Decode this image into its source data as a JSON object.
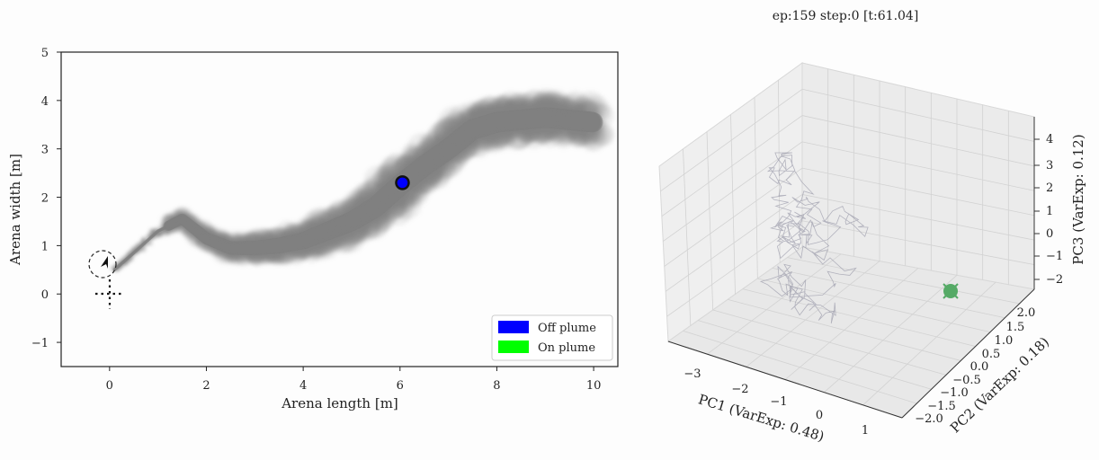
{
  "title": "ep:159 step:0 [t:61.04]",
  "chart_data": [
    {
      "type": "scatter",
      "xlabel": "Arena length [m]",
      "ylabel": "Arena width [m]",
      "xlim": [
        -1.0,
        10.5
      ],
      "ylim": [
        -1.5,
        5.0
      ],
      "xticks": [
        0,
        2,
        4,
        6,
        8,
        10
      ],
      "yticks": [
        -1,
        0,
        1,
        2,
        3,
        4,
        5
      ],
      "tick_labels_x": [
        "0",
        "2",
        "4",
        "6",
        "8",
        "10"
      ],
      "tick_labels_y": [
        "−1",
        "0",
        "1",
        "2",
        "3",
        "4",
        "5"
      ],
      "plume_centerline": [
        {
          "x": 0.1,
          "y": 0.5
        },
        {
          "x": 0.5,
          "y": 0.85
        },
        {
          "x": 1.0,
          "y": 1.3
        },
        {
          "x": 1.5,
          "y": 1.55
        },
        {
          "x": 2.0,
          "y": 1.15
        },
        {
          "x": 2.5,
          "y": 0.95
        },
        {
          "x": 3.0,
          "y": 0.95
        },
        {
          "x": 3.5,
          "y": 1.0
        },
        {
          "x": 4.0,
          "y": 1.1
        },
        {
          "x": 4.5,
          "y": 1.3
        },
        {
          "x": 5.0,
          "y": 1.5
        },
        {
          "x": 5.5,
          "y": 1.8
        },
        {
          "x": 6.0,
          "y": 2.25
        },
        {
          "x": 6.5,
          "y": 2.65
        },
        {
          "x": 7.0,
          "y": 3.0
        },
        {
          "x": 7.5,
          "y": 3.4
        },
        {
          "x": 8.0,
          "y": 3.55
        },
        {
          "x": 8.5,
          "y": 3.6
        },
        {
          "x": 9.0,
          "y": 3.65
        },
        {
          "x": 9.5,
          "y": 3.6
        },
        {
          "x": 10.0,
          "y": 3.55
        }
      ],
      "plume_color": "#808080",
      "agent": {
        "x": 6.05,
        "y": 2.3,
        "status_color": "#0000ff"
      },
      "source": {
        "x": -0.15,
        "y": 0.6
      },
      "legend": {
        "placement": "lower-right",
        "entries": [
          {
            "label": "Off plume",
            "color": "#0000ff"
          },
          {
            "label": "On plume",
            "color": "#00ff00"
          }
        ]
      }
    },
    {
      "type": "line3d",
      "xlabel": "PC1 (VarExp: 0.48)",
      "ylabel": "PC2 (VarExp: 0.18)",
      "zlabel": "PC3 (VarExp: 0.12)",
      "xticks": [
        "−3",
        "−2",
        "−1",
        "0",
        "1"
      ],
      "yticks": [
        "2.0",
        "1.5",
        "1.0",
        "0.5",
        "0.0",
        "−0.5",
        "−1.0",
        "−1.5",
        "−2.0"
      ],
      "zticks": [
        "4",
        "3",
        "2",
        "1",
        "0",
        "−1",
        "−2"
      ],
      "current_point_color": "#55aa66",
      "trajectory_color": "#9a9aaa"
    }
  ]
}
